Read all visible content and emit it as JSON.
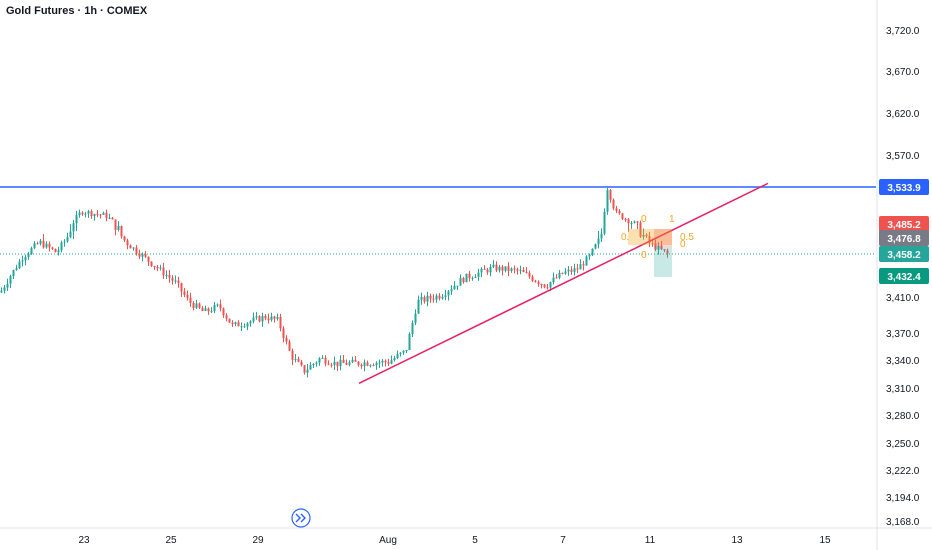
{
  "header": {
    "title": "Gold Futures · 1h · COMEX"
  },
  "colors": {
    "up": "#26a69a",
    "down": "#ef5350",
    "resistance": "#2962ff",
    "trendline": "#e91e63",
    "fib": "#f5a623",
    "axis_text": "#131722"
  },
  "icons": {
    "scroll_to_latest": "double-chevron-right-icon"
  },
  "chart_data": {
    "type": "candlestick",
    "x_labels": [
      "23",
      "25",
      "29",
      "Aug",
      "5",
      "7",
      "11",
      "13",
      "15"
    ],
    "y_ticks": [
      "3,720.0",
      "3,670.0",
      "3,620.0",
      "3,570.0",
      "3,410.0",
      "3,370.0",
      "3,340.0",
      "3,310.0",
      "3,280.0",
      "3,250.0",
      "3,222.0",
      "3,194.0",
      "3,168.0"
    ],
    "y_tick_values": [
      3720,
      3670,
      3620,
      3570,
      3410,
      3370,
      3340,
      3310,
      3280,
      3250,
      3222,
      3194,
      3168
    ],
    "price_badges": [
      {
        "label": "3,533.9",
        "value": 3533.9,
        "color": "#2962ff"
      },
      {
        "label": "3,485.2",
        "value": 3485.2,
        "color": "#ef5350"
      },
      {
        "label": "3,476.8",
        "value": 3476.8,
        "color": "#787b86"
      },
      {
        "label": "3,458.2",
        "value": 3458.2,
        "color": "#26a69a"
      },
      {
        "label": "3,432.4",
        "value": 3432.4,
        "color": "#089981"
      }
    ],
    "resistance_level": 3533.9,
    "last_price": 3458.2,
    "trendline": {
      "start": {
        "x": 29.6,
        "y": 3315
      },
      "end": {
        "x": 13.6,
        "y": 3538
      }
    },
    "fib_labels": [
      "0",
      "1",
      "0.5",
      "0",
      "0.",
      "0"
    ],
    "price_path_approx": [
      [
        20.0,
        3415
      ],
      [
        20.8,
        3455
      ],
      [
        21.4,
        3472
      ],
      [
        22.0,
        3460
      ],
      [
        22.4,
        3478
      ],
      [
        22.9,
        3502
      ],
      [
        23.5,
        3496
      ],
      [
        24.0,
        3470
      ],
      [
        24.6,
        3445
      ],
      [
        25.2,
        3425
      ],
      [
        25.8,
        3405
      ],
      [
        26.5,
        3393
      ],
      [
        27.2,
        3400
      ],
      [
        27.8,
        3378
      ],
      [
        28.5,
        3382
      ],
      [
        29.2,
        3388
      ],
      [
        29.6,
        3384
      ],
      [
        30.0,
        3345
      ],
      [
        30.4,
        3328
      ],
      [
        30.9,
        3342
      ],
      [
        31.4,
        3336
      ],
      [
        1.0,
        3338
      ],
      [
        1.6,
        3350
      ],
      [
        2.0,
        3405
      ],
      [
        2.8,
        3412
      ],
      [
        3.6,
        3430
      ],
      [
        4.4,
        3442
      ],
      [
        5.0,
        3438
      ],
      [
        5.6,
        3422
      ],
      [
        6.0,
        3436
      ],
      [
        6.6,
        3440
      ],
      [
        7.2,
        3455
      ],
      [
        7.8,
        3482
      ],
      [
        8.0,
        3535
      ],
      [
        8.4,
        3500
      ],
      [
        9.0,
        3490
      ],
      [
        9.6,
        3480
      ],
      [
        10.0,
        3470
      ],
      [
        10.4,
        3458
      ]
    ]
  }
}
